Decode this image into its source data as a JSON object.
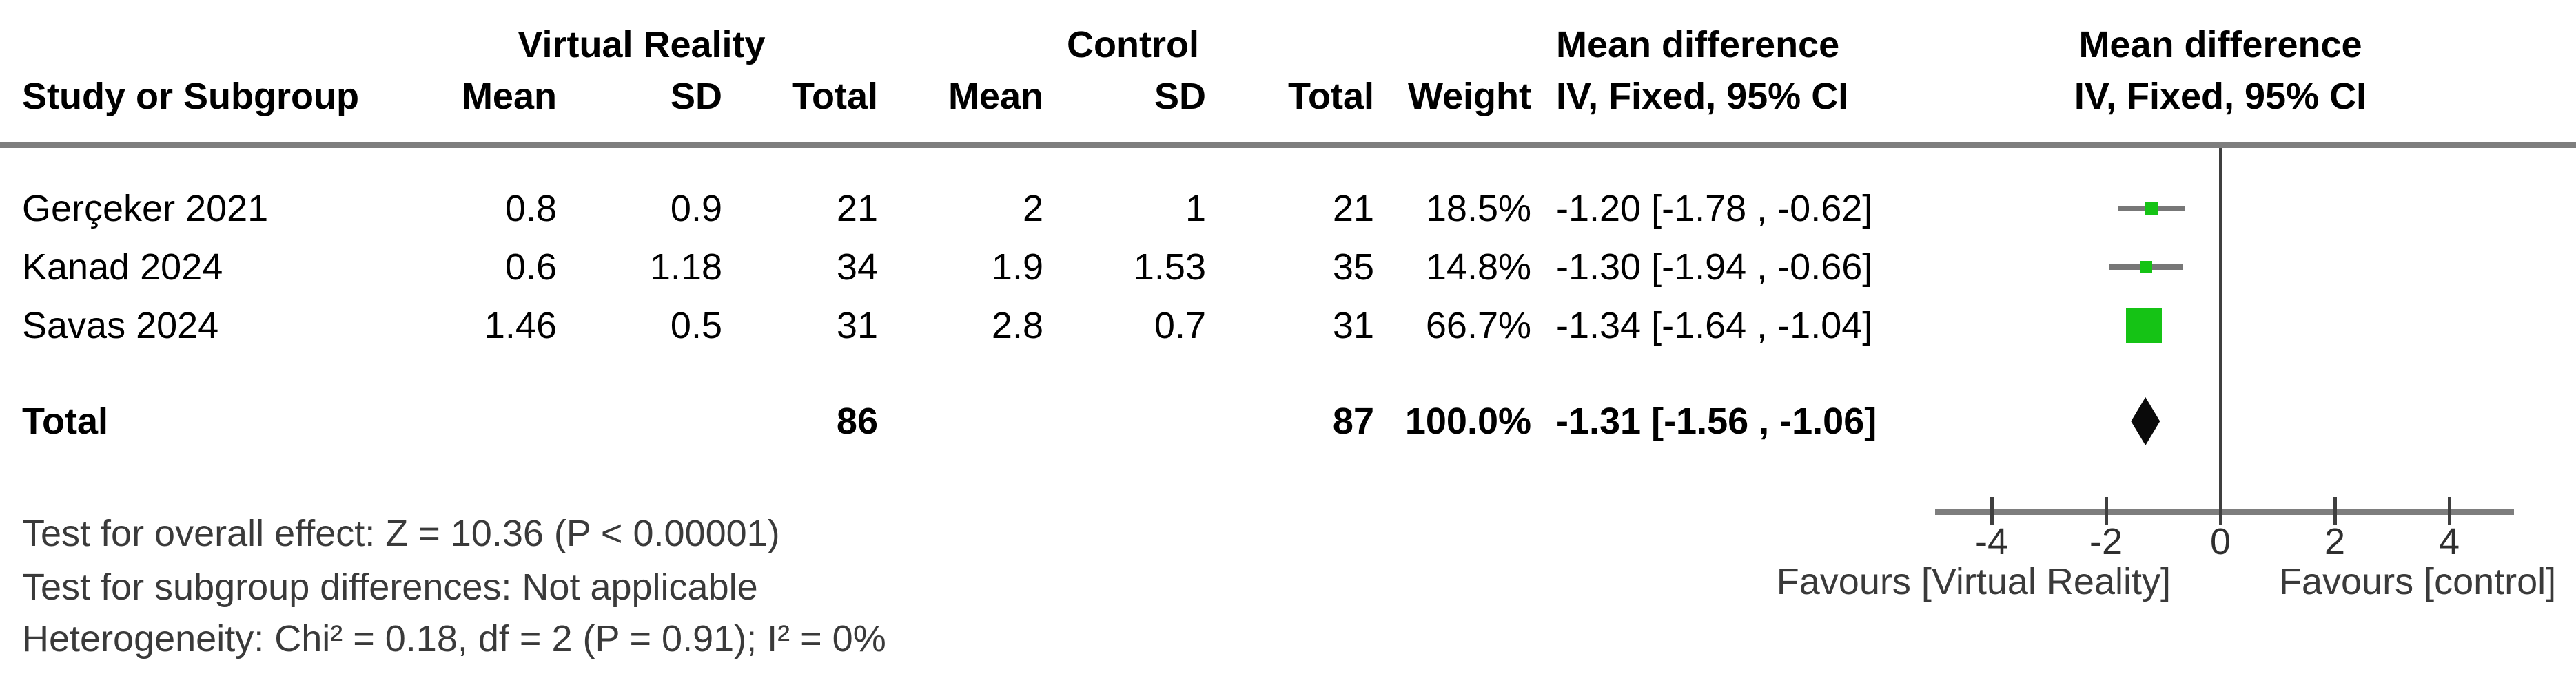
{
  "header": {
    "study_col": "Study or Subgroup",
    "group1": {
      "label": "Virtual Reality",
      "cols": [
        "Mean",
        "SD",
        "Total"
      ]
    },
    "group2": {
      "label": "Control",
      "cols": [
        "Mean",
        "SD",
        "Total"
      ]
    },
    "weight_col": "Weight",
    "effect_text_col": {
      "line1": "Mean difference",
      "line2": "IV, Fixed, 95% CI"
    },
    "effect_plot_col": {
      "line1": "Mean difference",
      "line2": "IV, Fixed, 95% CI"
    }
  },
  "studies": [
    {
      "name": "Gerçeker 2021",
      "vr_mean": "0.8",
      "vr_sd": "0.9",
      "vr_total": "21",
      "c_mean": "2",
      "c_sd": "1",
      "c_total": "21",
      "weight": "18.5%",
      "ci_text": "-1.20 [-1.78 , -0.62]"
    },
    {
      "name": "Kanad 2024",
      "vr_mean": "0.6",
      "vr_sd": "1.18",
      "vr_total": "34",
      "c_mean": "1.9",
      "c_sd": "1.53",
      "c_total": "35",
      "weight": "14.8%",
      "ci_text": "-1.30 [-1.94 , -0.66]"
    },
    {
      "name": "Savas 2024",
      "vr_mean": "1.46",
      "vr_sd": "0.5",
      "vr_total": "31",
      "c_mean": "2.8",
      "c_sd": "0.7",
      "c_total": "31",
      "weight": "66.7%",
      "ci_text": "-1.34 [-1.64 , -1.04]"
    }
  ],
  "total": {
    "label": "Total",
    "vr_total": "86",
    "c_total": "87",
    "weight": "100.0%",
    "ci_text": "-1.31 [-1.56 , -1.06]"
  },
  "footnotes": [
    "Test for overall effect: Z = 10.36 (P < 0.00001)",
    "Test for subgroup differences: Not applicable",
    "Heterogeneity: Chi² = 0.18, df = 2 (P = 0.91); I² = 0%"
  ],
  "axis": {
    "tick_labels": [
      "-4",
      "-2",
      "0",
      "2",
      "4"
    ],
    "favours_left": "Favours [Virtual Reality]",
    "favours_right": "Favours [control]"
  },
  "colors": {
    "marker_green": "#15c315",
    "ci_line": "#777777",
    "axis_gray": "#7e7e7e",
    "zero_line": "#3f3f3f",
    "diamond_black": "#0a0a0a"
  },
  "chart_data": {
    "type": "scatter",
    "subtype": "forest-plot",
    "effect_measure": "Mean difference, IV, Fixed, 95% CI",
    "x_axis": {
      "range": [
        -5,
        5.1
      ],
      "ticks": [
        -4,
        -2,
        0,
        2,
        4
      ],
      "zero_line": 0
    },
    "studies": [
      {
        "label": "Gerçeker 2021",
        "mean_diff": -1.2,
        "ci_low": -1.78,
        "ci_high": -0.62,
        "weight_pct": 18.5
      },
      {
        "label": "Kanad 2024",
        "mean_diff": -1.3,
        "ci_low": -1.94,
        "ci_high": -0.66,
        "weight_pct": 14.8
      },
      {
        "label": "Savas 2024",
        "mean_diff": -1.34,
        "ci_low": -1.64,
        "ci_high": -1.04,
        "weight_pct": 66.7
      }
    ],
    "total": {
      "label": "Total",
      "mean_diff": -1.31,
      "ci_low": -1.56,
      "ci_high": -1.06,
      "weight_pct": 100.0
    },
    "legend_left": "Favours [Virtual Reality]",
    "legend_right": "Favours [control]"
  }
}
